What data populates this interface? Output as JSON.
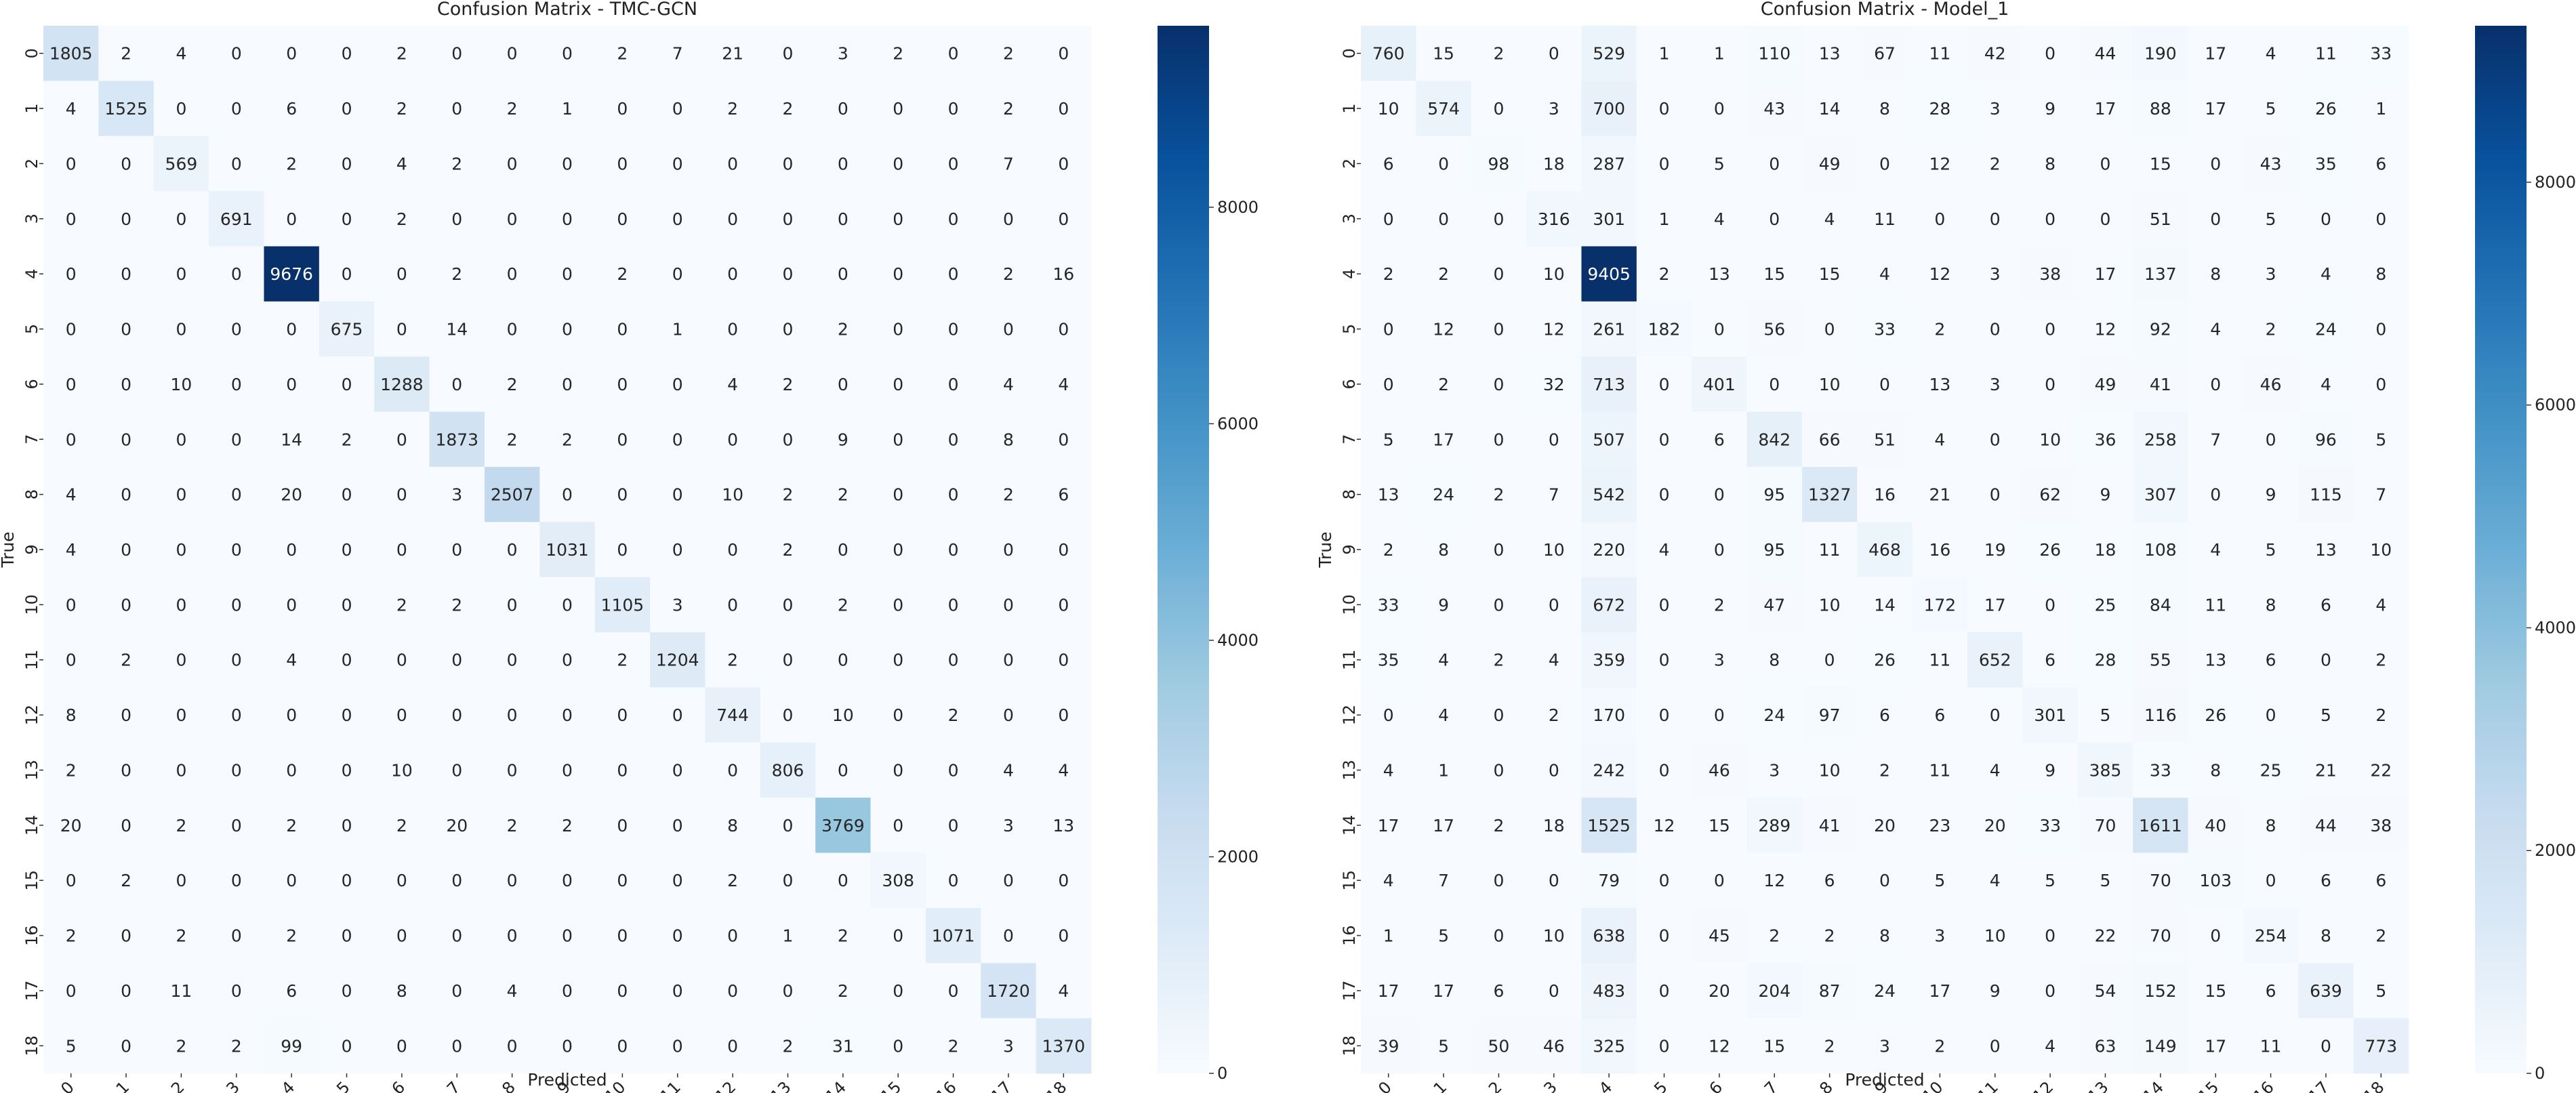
{
  "colorbar_ticks": [
    0,
    2000,
    4000,
    6000,
    8000
  ],
  "colormap": [
    "#f7fbff",
    "#deebf7",
    "#c6dbef",
    "#9ecae1",
    "#6baed6",
    "#4292c6",
    "#2171b5",
    "#08519c",
    "#08306b"
  ],
  "chart_data": [
    {
      "type": "heatmap",
      "title": "Confusion Matrix - TMC-GCN",
      "xlabel": "Predicted",
      "ylabel": "True",
      "labels": [
        "0",
        "1",
        "2",
        "3",
        "4",
        "5",
        "6",
        "7",
        "8",
        "9",
        "10",
        "11",
        "12",
        "13",
        "14",
        "15",
        "16",
        "17",
        "18"
      ],
      "vmin": 0,
      "vmax": 9676,
      "matrix": [
        [
          1805,
          2,
          4,
          0,
          0,
          0,
          2,
          0,
          0,
          0,
          2,
          7,
          21,
          0,
          3,
          2,
          0,
          2,
          0
        ],
        [
          4,
          1525,
          0,
          0,
          6,
          0,
          2,
          0,
          2,
          1,
          0,
          0,
          2,
          2,
          0,
          0,
          0,
          2,
          0
        ],
        [
          0,
          0,
          569,
          0,
          2,
          0,
          4,
          2,
          0,
          0,
          0,
          0,
          0,
          0,
          0,
          0,
          0,
          7,
          0
        ],
        [
          0,
          0,
          0,
          691,
          0,
          0,
          2,
          0,
          0,
          0,
          0,
          0,
          0,
          0,
          0,
          0,
          0,
          0,
          0
        ],
        [
          0,
          0,
          0,
          0,
          9676,
          0,
          0,
          2,
          0,
          0,
          2,
          0,
          0,
          0,
          0,
          0,
          0,
          2,
          16
        ],
        [
          0,
          0,
          0,
          0,
          0,
          675,
          0,
          14,
          0,
          0,
          0,
          1,
          0,
          0,
          2,
          0,
          0,
          0,
          0
        ],
        [
          0,
          0,
          10,
          0,
          0,
          0,
          1288,
          0,
          2,
          0,
          0,
          0,
          4,
          2,
          0,
          0,
          0,
          4,
          4
        ],
        [
          0,
          0,
          0,
          0,
          14,
          2,
          0,
          1873,
          2,
          2,
          0,
          0,
          0,
          0,
          9,
          0,
          0,
          8,
          0
        ],
        [
          4,
          0,
          0,
          0,
          20,
          0,
          0,
          3,
          2507,
          0,
          0,
          0,
          10,
          2,
          2,
          0,
          0,
          2,
          6
        ],
        [
          4,
          0,
          0,
          0,
          0,
          0,
          0,
          0,
          0,
          1031,
          0,
          0,
          0,
          2,
          0,
          0,
          0,
          0,
          0
        ],
        [
          0,
          0,
          0,
          0,
          0,
          0,
          2,
          2,
          0,
          0,
          1105,
          3,
          0,
          0,
          2,
          0,
          0,
          0,
          0
        ],
        [
          0,
          2,
          0,
          0,
          4,
          0,
          0,
          0,
          0,
          0,
          2,
          1204,
          2,
          0,
          0,
          0,
          0,
          0,
          0
        ],
        [
          8,
          0,
          0,
          0,
          0,
          0,
          0,
          0,
          0,
          0,
          0,
          0,
          744,
          0,
          10,
          0,
          2,
          0,
          0
        ],
        [
          2,
          0,
          0,
          0,
          0,
          0,
          10,
          0,
          0,
          0,
          0,
          0,
          0,
          806,
          0,
          0,
          0,
          4,
          4
        ],
        [
          20,
          0,
          2,
          0,
          2,
          0,
          2,
          20,
          2,
          2,
          0,
          0,
          8,
          0,
          3769,
          0,
          0,
          3,
          13
        ],
        [
          0,
          2,
          0,
          0,
          0,
          0,
          0,
          0,
          0,
          0,
          0,
          0,
          2,
          0,
          0,
          308,
          0,
          0,
          0
        ],
        [
          2,
          0,
          2,
          0,
          2,
          0,
          0,
          0,
          0,
          0,
          0,
          0,
          0,
          1,
          2,
          0,
          1071,
          0,
          0
        ],
        [
          0,
          0,
          11,
          0,
          6,
          0,
          8,
          0,
          4,
          0,
          0,
          0,
          0,
          0,
          2,
          0,
          0,
          1720,
          4
        ],
        [
          5,
          0,
          2,
          2,
          99,
          0,
          0,
          0,
          0,
          0,
          0,
          0,
          0,
          2,
          31,
          0,
          2,
          3,
          1370
        ]
      ]
    },
    {
      "type": "heatmap",
      "title": "Confusion Matrix - Model_1",
      "xlabel": "Predicted",
      "ylabel": "True",
      "labels": [
        "0",
        "1",
        "2",
        "3",
        "4",
        "5",
        "6",
        "7",
        "8",
        "9",
        "10",
        "11",
        "12",
        "13",
        "14",
        "15",
        "16",
        "17",
        "18"
      ],
      "vmin": 0,
      "vmax": 9405,
      "matrix": [
        [
          760,
          15,
          2,
          0,
          529,
          1,
          1,
          110,
          13,
          67,
          11,
          42,
          0,
          44,
          190,
          17,
          4,
          11,
          33
        ],
        [
          10,
          574,
          0,
          3,
          700,
          0,
          0,
          43,
          14,
          8,
          28,
          3,
          9,
          17,
          88,
          17,
          5,
          26,
          1
        ],
        [
          6,
          0,
          98,
          18,
          287,
          0,
          5,
          0,
          49,
          0,
          12,
          2,
          8,
          0,
          15,
          0,
          43,
          35,
          6
        ],
        [
          0,
          0,
          0,
          316,
          301,
          1,
          4,
          0,
          4,
          11,
          0,
          0,
          0,
          0,
          51,
          0,
          5,
          0,
          0
        ],
        [
          2,
          2,
          0,
          10,
          9405,
          2,
          13,
          15,
          15,
          4,
          12,
          3,
          38,
          17,
          137,
          8,
          3,
          4,
          8
        ],
        [
          0,
          12,
          0,
          12,
          261,
          182,
          0,
          56,
          0,
          33,
          2,
          0,
          0,
          12,
          92,
          4,
          2,
          24,
          0
        ],
        [
          0,
          2,
          0,
          32,
          713,
          0,
          401,
          0,
          10,
          0,
          13,
          3,
          0,
          49,
          41,
          0,
          46,
          4,
          0
        ],
        [
          5,
          17,
          0,
          0,
          507,
          0,
          6,
          842,
          66,
          51,
          4,
          0,
          10,
          36,
          258,
          7,
          0,
          96,
          5
        ],
        [
          13,
          24,
          2,
          7,
          542,
          0,
          0,
          95,
          1327,
          16,
          21,
          0,
          62,
          9,
          307,
          0,
          9,
          115,
          7
        ],
        [
          2,
          8,
          0,
          10,
          220,
          4,
          0,
          95,
          11,
          468,
          16,
          19,
          26,
          18,
          108,
          4,
          5,
          13,
          10
        ],
        [
          33,
          9,
          0,
          0,
          672,
          0,
          2,
          47,
          10,
          14,
          172,
          17,
          0,
          25,
          84,
          11,
          8,
          6,
          4
        ],
        [
          35,
          4,
          2,
          4,
          359,
          0,
          3,
          8,
          0,
          26,
          11,
          652,
          6,
          28,
          55,
          13,
          6,
          0,
          2
        ],
        [
          0,
          4,
          0,
          2,
          170,
          0,
          0,
          24,
          97,
          6,
          6,
          0,
          301,
          5,
          116,
          26,
          0,
          5,
          2
        ],
        [
          4,
          1,
          0,
          0,
          242,
          0,
          46,
          3,
          10,
          2,
          11,
          4,
          9,
          385,
          33,
          8,
          25,
          21,
          22
        ],
        [
          17,
          17,
          2,
          18,
          1525,
          12,
          15,
          289,
          41,
          20,
          23,
          20,
          33,
          70,
          1611,
          40,
          8,
          44,
          38
        ],
        [
          4,
          7,
          0,
          0,
          79,
          0,
          0,
          12,
          6,
          0,
          5,
          4,
          5,
          5,
          70,
          103,
          0,
          6,
          6
        ],
        [
          1,
          5,
          0,
          10,
          638,
          0,
          45,
          2,
          2,
          8,
          3,
          10,
          0,
          22,
          70,
          0,
          254,
          8,
          2
        ],
        [
          17,
          17,
          6,
          0,
          483,
          0,
          20,
          204,
          87,
          24,
          17,
          9,
          0,
          54,
          152,
          15,
          6,
          639,
          5
        ],
        [
          39,
          5,
          50,
          46,
          325,
          0,
          12,
          15,
          2,
          3,
          2,
          0,
          4,
          63,
          149,
          17,
          11,
          0,
          773
        ]
      ]
    }
  ]
}
